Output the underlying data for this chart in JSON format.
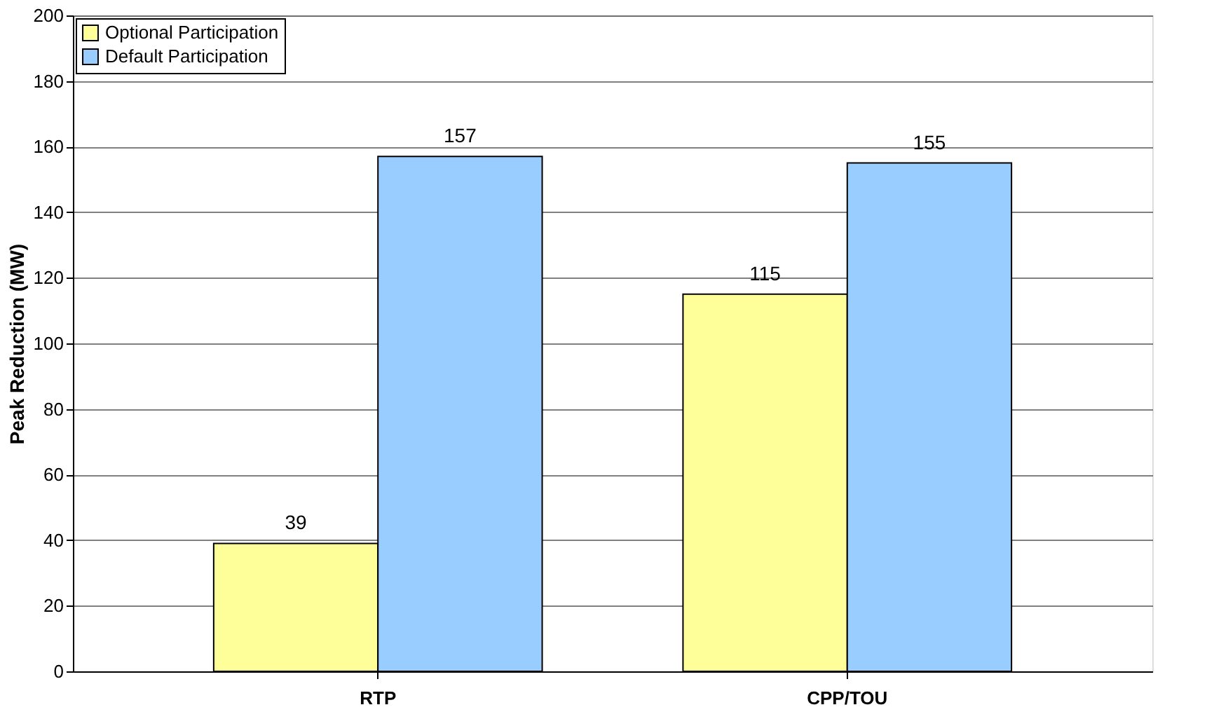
{
  "chart_data": {
    "type": "bar",
    "ylabel": "Peak Reduction (MW)",
    "categories": [
      "RTP",
      "CPP/TOU"
    ],
    "series": [
      {
        "name": "Optional Participation",
        "color": "#ffff99",
        "values": [
          39,
          115
        ]
      },
      {
        "name": "Default Participation",
        "color": "#99ccff",
        "values": [
          157,
          155
        ]
      }
    ],
    "ylim": [
      0,
      200
    ],
    "yticks": [
      0,
      20,
      40,
      60,
      80,
      100,
      120,
      140,
      160,
      180,
      200
    ],
    "grid": "y",
    "legend": "top left",
    "data_labels": true
  }
}
